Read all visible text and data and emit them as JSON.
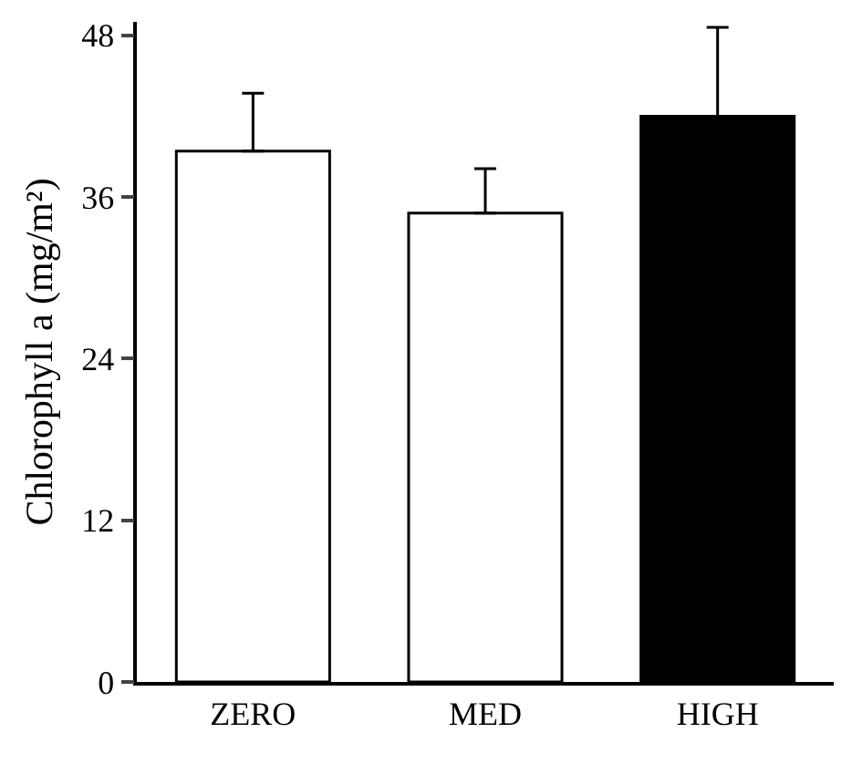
{
  "chart_data": {
    "type": "bar",
    "ylabel": "Chlorophyll a (mg/m²)",
    "categories": [
      "ZERO",
      "MED",
      "HIGH"
    ],
    "values": [
      39.4,
      34.8,
      42.0
    ],
    "errors": [
      [
        39.4,
        43.7
      ],
      [
        34.8,
        38.1
      ],
      [
        42.0,
        48.6
      ]
    ],
    "colors": [
      "#ffffff",
      "#ffffff",
      "#000000"
    ],
    "ylim": [
      0,
      49
    ],
    "yticks": [
      0,
      12,
      24,
      36,
      48
    ],
    "grid": false
  }
}
